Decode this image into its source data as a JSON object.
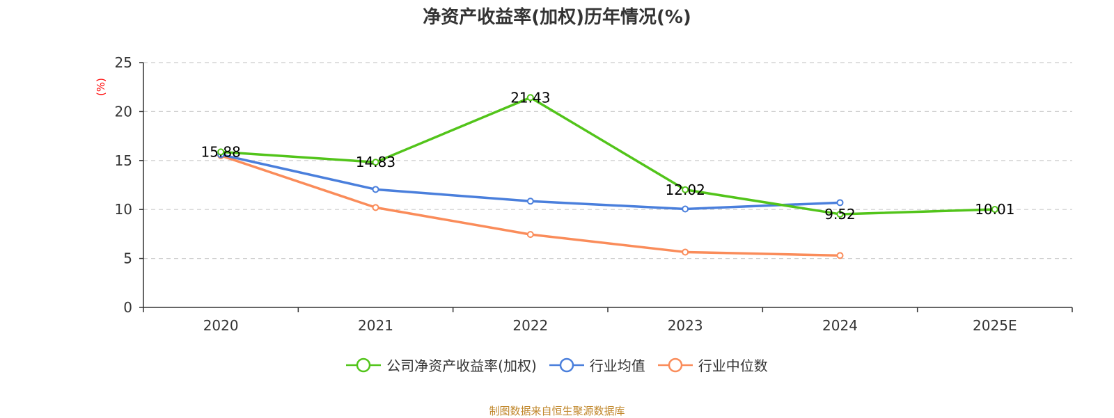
{
  "chart_data": {
    "type": "line",
    "title": "净资产收益率(加权)历年情况(%)",
    "ylabel": "(%)",
    "xlabel": "",
    "categories": [
      "2020",
      "2021",
      "2022",
      "2023",
      "2024",
      "2025E"
    ],
    "ylim": [
      0,
      25
    ],
    "yticks": [
      0,
      5,
      10,
      15,
      20,
      25
    ],
    "grid": true,
    "series": [
      {
        "name": "公司净资产收益率(加权)",
        "color": "#52c41a",
        "values": [
          15.88,
          14.83,
          21.43,
          12.02,
          9.52,
          10.01
        ],
        "labels": [
          "15.88",
          "14.83",
          "21.43",
          "12.02",
          "9.52",
          "10.01"
        ]
      },
      {
        "name": "行业均值",
        "color": "#4a7fdc",
        "values": [
          15.6,
          12.05,
          10.85,
          10.05,
          10.7,
          null
        ]
      },
      {
        "name": "行业中位数",
        "color": "#fa8c5a",
        "values": [
          15.5,
          10.2,
          7.45,
          5.65,
          5.3,
          null
        ]
      }
    ],
    "legend_position": "bottom-center"
  },
  "colors": {
    "ylabel": "#ff0000",
    "footer": "#c0872b",
    "axis": "#333333",
    "grid": "#cccccc"
  },
  "footer": "制图数据来自恒生聚源数据库"
}
